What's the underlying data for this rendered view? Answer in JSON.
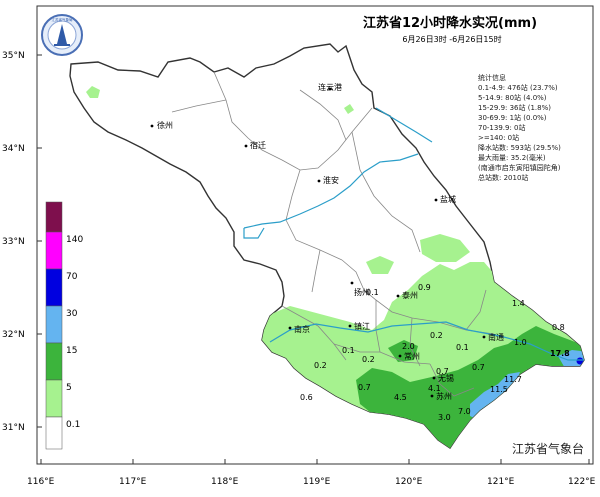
{
  "title": "江苏省12小时降水实况(mm)",
  "subtitle": "6月26日3时 -6月26日15时",
  "agency": "江苏省气象台",
  "logo_text": "江苏省气象局",
  "lat_ticks": [
    "35°N",
    "34°N",
    "33°N",
    "32°N",
    "31°N"
  ],
  "lon_ticks": [
    "116°E",
    "117°E",
    "118°E",
    "119°E",
    "120°E",
    "121°E",
    "122°E"
  ],
  "legend": {
    "labels": [
      "140",
      "70",
      "30",
      "15",
      "5",
      "0.1"
    ],
    "colors": [
      "#7e0f4d",
      "#ff00ff",
      "#0000e0",
      "#64b4f0",
      "#3cb43c",
      "#a6f28f",
      "#ffffff"
    ]
  },
  "stats": {
    "lines": [
      "统计信息",
      "0.1-4.9: 476站 (23.7%)",
      "5-14.9: 80站 (4.0%)",
      "15-29.9: 36站 (1.8%)",
      "30-69.9: 1站 (0.0%)",
      "70-139.9: 0站",
      ">=140: 0站",
      "降水站数: 593站 (29.5%)",
      "最大雨量: 35.2(毫米)",
      "(南通市启东寅阳镇园陀角)",
      "总站数: 2010站"
    ]
  },
  "cities": [
    {
      "name": "连云港"
    },
    {
      "name": "徐州"
    },
    {
      "name": "宿迁"
    },
    {
      "name": "淮安"
    },
    {
      "name": "盐城"
    },
    {
      "name": "扬州"
    },
    {
      "name": "泰州"
    },
    {
      "name": "南京"
    },
    {
      "name": "镇江"
    },
    {
      "name": "常州"
    },
    {
      "name": "南通"
    },
    {
      "name": "无锡"
    },
    {
      "name": "苏州"
    }
  ],
  "rain_values": [
    "0.1",
    "0.9",
    "1.4",
    "0.8",
    "17.8",
    "0.2",
    "1.0",
    "0.1",
    "2.0",
    "0.1",
    "0.2",
    "0.2",
    "0.7",
    "0.7",
    "11.7",
    "4.1",
    "11.5",
    "0.6",
    "4.5",
    "7.0",
    "3.0"
  ]
}
